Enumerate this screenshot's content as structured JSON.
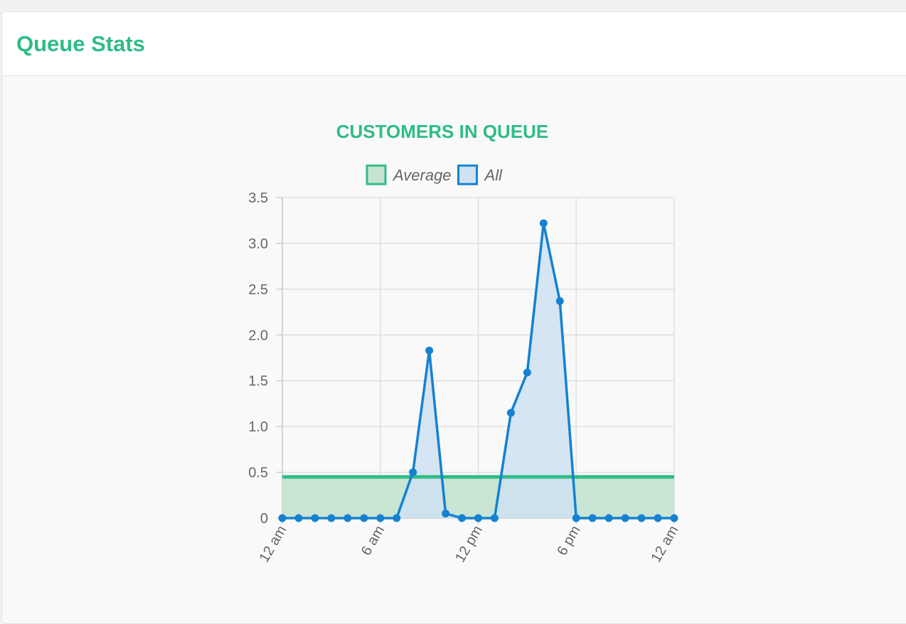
{
  "card": {
    "title": "Queue Stats"
  },
  "colors": {
    "accent": "#2ebd85",
    "average_line": "#2ebd85",
    "average_fill": "#c6e4d1",
    "all_line": "#1581d1",
    "all_fill": "#cfe2f2",
    "grid": "#e0e0e0",
    "tick_text": "#666666"
  },
  "chart_data": {
    "type": "line",
    "title": "CUSTOMERS IN QUEUE",
    "legend_position": "top",
    "grid": true,
    "ylim": [
      0,
      3.5
    ],
    "y_ticks": [
      "0",
      "0.5",
      "1.0",
      "1.5",
      "2.0",
      "2.5",
      "3.0",
      "3.5"
    ],
    "x_tick_labels": [
      "12 am",
      "6 am",
      "12 pm",
      "6 pm",
      "12 am"
    ],
    "x": [
      0,
      1,
      2,
      3,
      4,
      5,
      6,
      7,
      8,
      9,
      10,
      11,
      12,
      13,
      14,
      15,
      16,
      17,
      18,
      19,
      20,
      21,
      22,
      23,
      24
    ],
    "series": [
      {
        "name": "Average",
        "values": [
          0.45,
          0.45,
          0.45,
          0.45,
          0.45,
          0.45,
          0.45,
          0.45,
          0.45,
          0.45,
          0.45,
          0.45,
          0.45,
          0.45,
          0.45,
          0.45,
          0.45,
          0.45,
          0.45,
          0.45,
          0.45,
          0.45,
          0.45,
          0.45,
          0.45
        ]
      },
      {
        "name": "All",
        "values": [
          0,
          0,
          0,
          0,
          0,
          0,
          0,
          0,
          0.5,
          1.83,
          0.05,
          0,
          0,
          0,
          1.15,
          1.59,
          3.22,
          2.37,
          0,
          0,
          0,
          0,
          0,
          0,
          0
        ]
      }
    ]
  }
}
